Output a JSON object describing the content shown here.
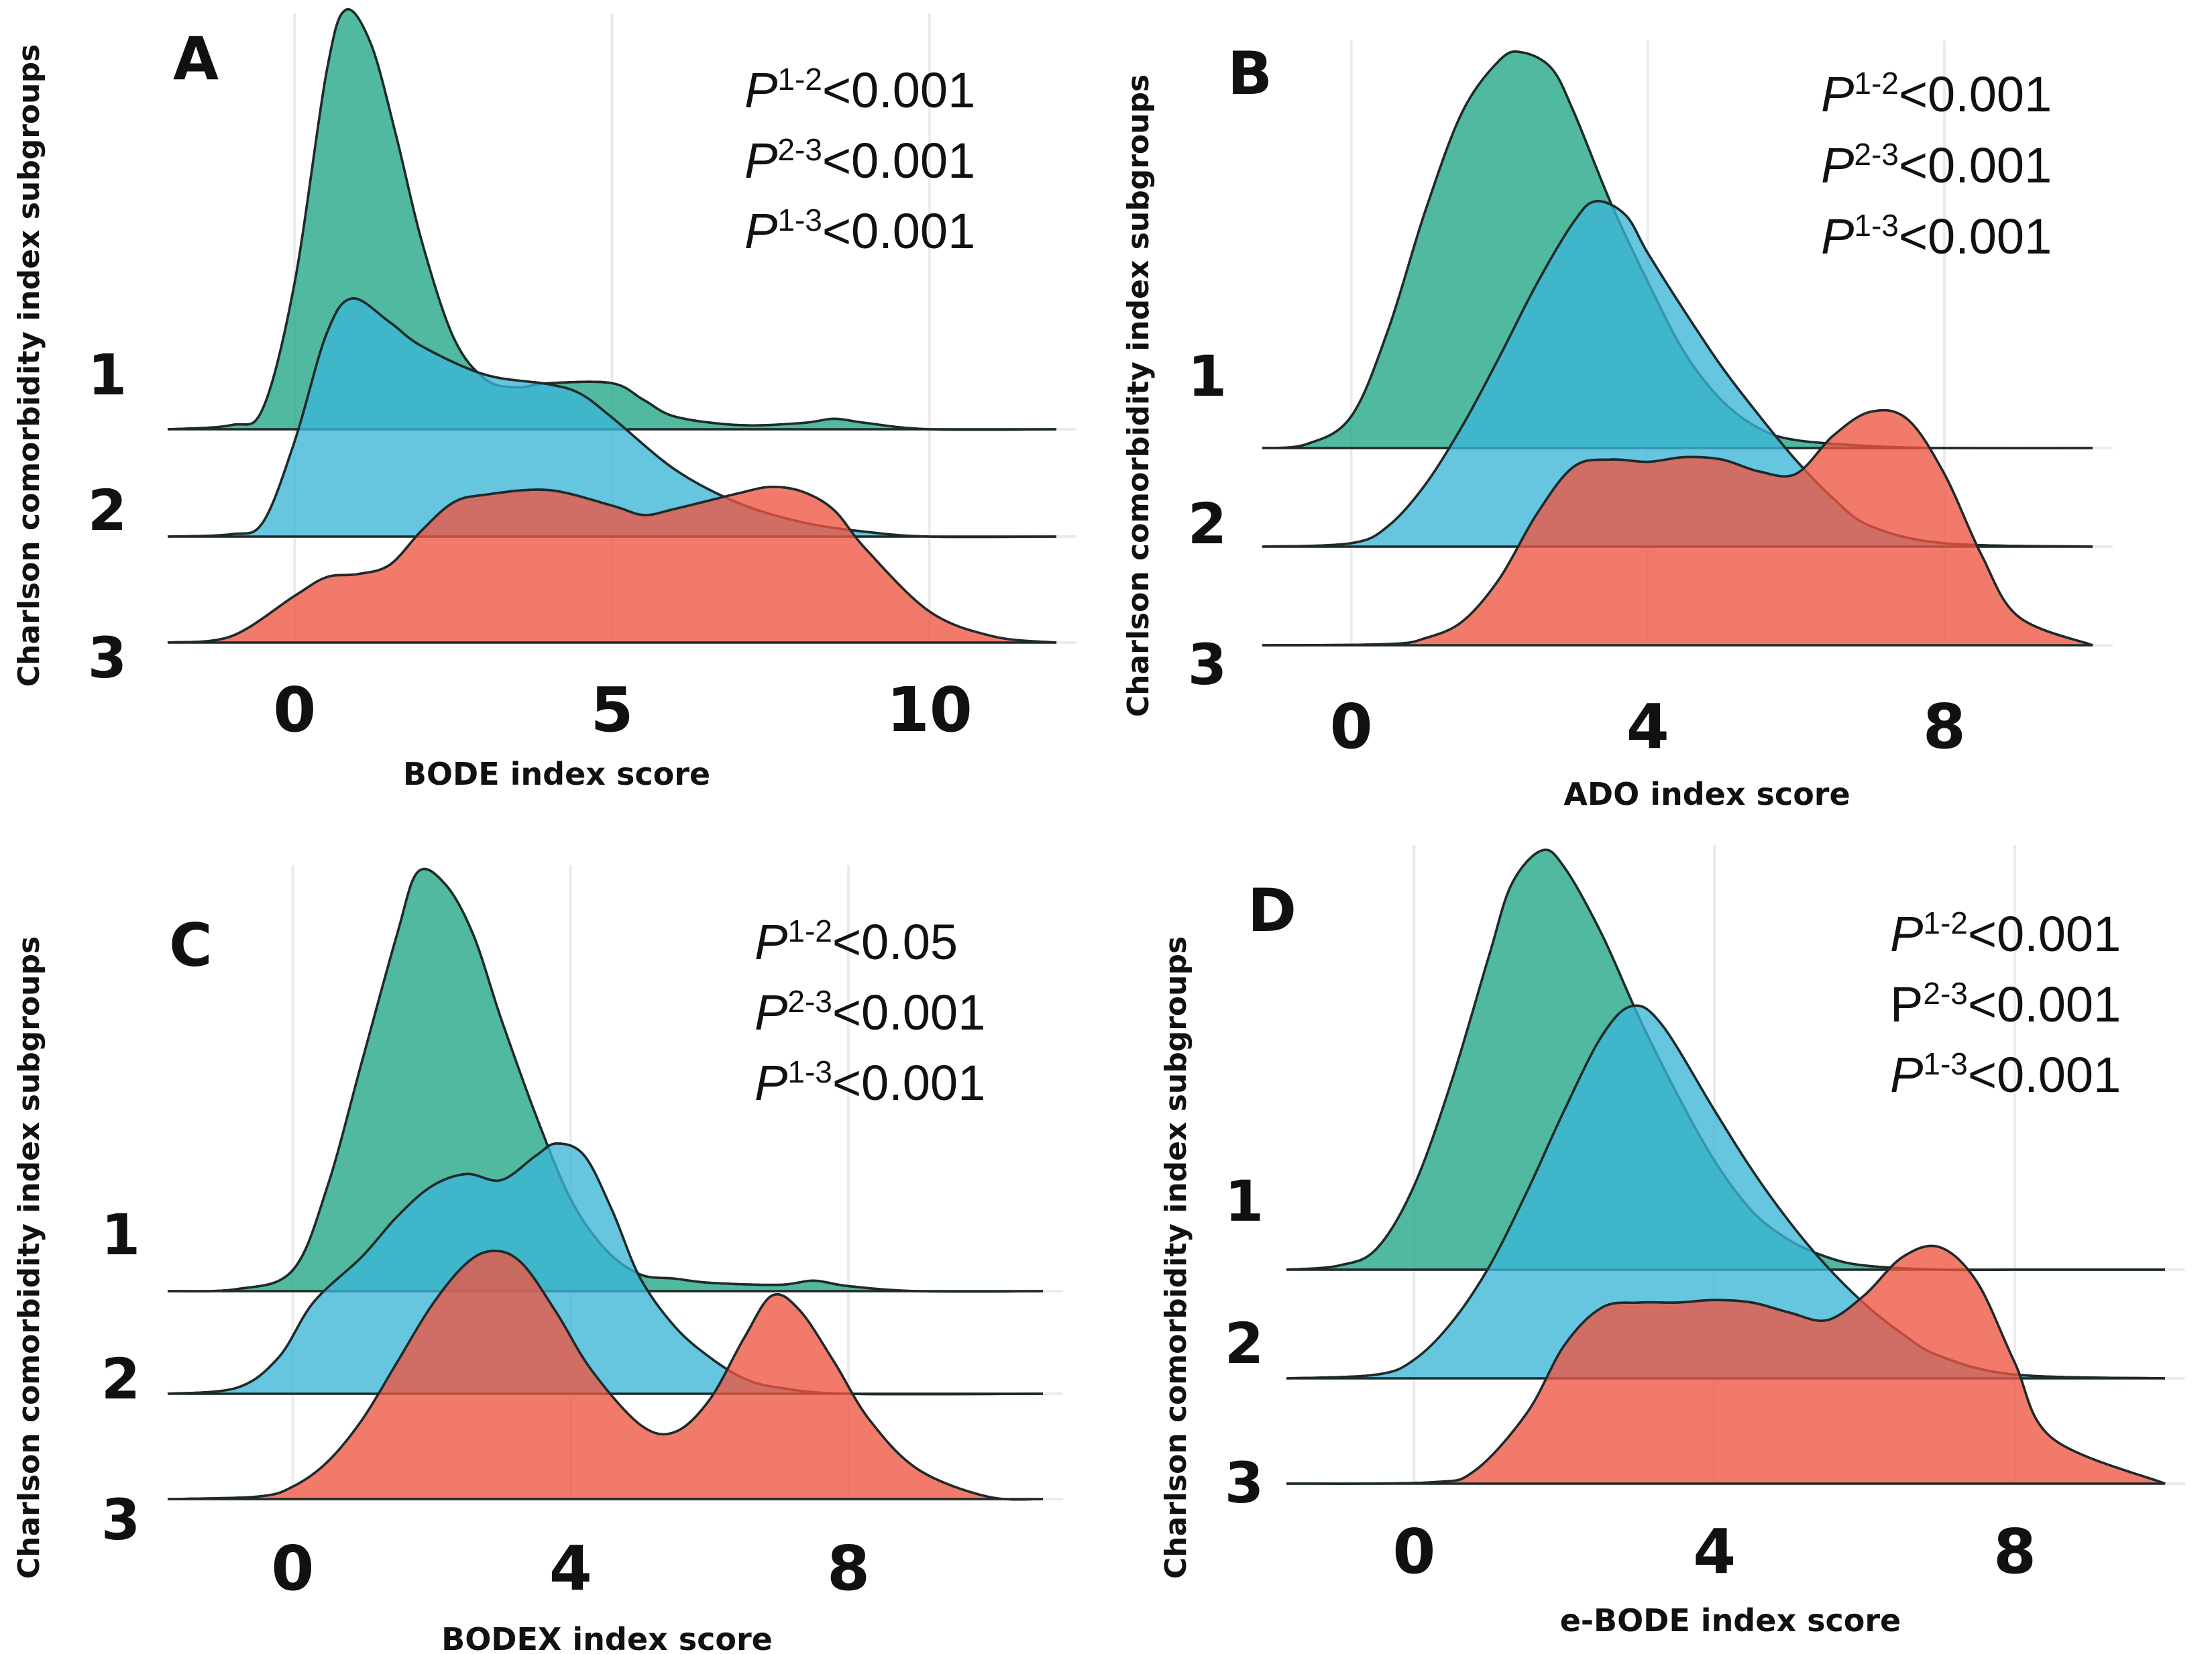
{
  "chart_data": [
    {
      "panel": "A",
      "type": "ridgeline",
      "xlabel": "BODE index score",
      "ylabel": "Charlson comorbidity index subgroups",
      "xlim": [
        -2,
        12
      ],
      "xticks": [
        "0",
        "5",
        "10"
      ],
      "tick_values": [
        0,
        5,
        10
      ],
      "categories": [
        "1",
        "2",
        "3"
      ],
      "pvalues": [
        {
          "pre": "P",
          "italic": true,
          "sup": "1-2",
          "rest": "<0.001"
        },
        {
          "pre": "P",
          "italic": true,
          "sup": "2-3",
          "rest": "<0.001"
        },
        {
          "pre": "P",
          "italic": true,
          "sup": "1-3",
          "rest": "<0.001"
        }
      ],
      "series": [
        {
          "name": "1",
          "color": "#1fa584",
          "x": [
            -2,
            -1,
            -0.5,
            0,
            0.5,
            0.8,
            1.2,
            1.6,
            2,
            2.5,
            3,
            3.5,
            4,
            5,
            5.5,
            6,
            7,
            8,
            8.5,
            9,
            10,
            12
          ],
          "density": [
            0,
            0.01,
            0.05,
            0.35,
            0.85,
            1.0,
            0.92,
            0.7,
            0.45,
            0.22,
            0.12,
            0.1,
            0.11,
            0.11,
            0.07,
            0.03,
            0.01,
            0.015,
            0.025,
            0.015,
            0,
            0
          ]
        },
        {
          "name": "2",
          "color": "#3bb5d6",
          "x": [
            -2,
            -1,
            -0.5,
            0,
            0.5,
            0.9,
            1.5,
            2,
            3,
            4,
            4.5,
            5,
            6,
            7,
            8,
            9,
            10,
            12
          ],
          "density": [
            0,
            0.01,
            0.06,
            0.4,
            0.85,
            1.0,
            0.9,
            0.8,
            0.68,
            0.64,
            0.6,
            0.5,
            0.28,
            0.14,
            0.06,
            0.02,
            0,
            0
          ]
        },
        {
          "name": "3",
          "color": "#ee5541",
          "x": [
            -2,
            -1,
            0,
            0.5,
            1,
            1.5,
            2,
            2.5,
            3,
            4,
            5,
            5.5,
            6,
            7,
            7.5,
            8,
            8.5,
            9,
            10,
            11,
            12
          ],
          "density": [
            0,
            0.04,
            0.3,
            0.42,
            0.44,
            0.5,
            0.72,
            0.9,
            0.95,
            0.98,
            0.88,
            0.82,
            0.86,
            0.96,
            1.0,
            0.97,
            0.85,
            0.6,
            0.2,
            0.04,
            0
          ]
        }
      ]
    },
    {
      "panel": "B",
      "type": "ridgeline",
      "xlabel": "ADO index score",
      "ylabel": "Charlson comorbidity index subgroups",
      "xlim": [
        -1.2,
        10
      ],
      "xticks": [
        "0",
        "4",
        "8"
      ],
      "tick_values": [
        0,
        4,
        8
      ],
      "categories": [
        "1",
        "2",
        "3"
      ],
      "pvalues": [
        {
          "pre": "P",
          "italic": true,
          "sup": "1-2",
          "rest": "<0.001"
        },
        {
          "pre": "P",
          "italic": true,
          "sup": "2-3",
          "rest": "<0.001"
        },
        {
          "pre": "P",
          "italic": true,
          "sup": "1-3",
          "rest": "<0.001"
        }
      ],
      "series": [
        {
          "name": "1",
          "color": "#1fa584",
          "x": [
            -1.2,
            -0.6,
            0,
            0.5,
            1,
            1.5,
            2,
            2.3,
            2.7,
            3,
            3.5,
            4,
            4.5,
            5,
            5.5,
            6,
            7,
            8,
            10
          ],
          "density": [
            0,
            0.01,
            0.08,
            0.3,
            0.6,
            0.85,
            0.98,
            1.0,
            0.96,
            0.85,
            0.62,
            0.42,
            0.24,
            0.12,
            0.05,
            0.02,
            0.005,
            0,
            0
          ]
        },
        {
          "name": "2",
          "color": "#3bb5d6",
          "x": [
            -1.2,
            0,
            0.5,
            1,
            1.5,
            2,
            2.5,
            3,
            3.3,
            3.7,
            4,
            4.5,
            5,
            5.5,
            6,
            6.5,
            7,
            8,
            10
          ],
          "density": [
            0,
            0.01,
            0.06,
            0.18,
            0.35,
            0.55,
            0.76,
            0.94,
            1.0,
            0.96,
            0.85,
            0.68,
            0.52,
            0.38,
            0.25,
            0.14,
            0.06,
            0.01,
            0
          ]
        },
        {
          "name": "3",
          "color": "#ee5541",
          "x": [
            -1.2,
            0.5,
            1,
            1.5,
            2,
            2.5,
            3,
            3.5,
            4,
            4.5,
            5,
            5.5,
            6,
            6.5,
            7,
            7.5,
            8,
            8.5,
            9,
            10
          ],
          "density": [
            0,
            0.005,
            0.03,
            0.1,
            0.28,
            0.55,
            0.75,
            0.78,
            0.77,
            0.79,
            0.78,
            0.73,
            0.72,
            0.88,
            0.98,
            0.95,
            0.72,
            0.38,
            0.12,
            0
          ]
        }
      ]
    },
    {
      "panel": "C",
      "type": "ridgeline",
      "xlabel": "BODEX index score",
      "ylabel": "Charlson comorbidity index subgroups",
      "xlim": [
        -1.8,
        10.8
      ],
      "xticks": [
        "0",
        "4",
        "8"
      ],
      "tick_values": [
        0,
        4,
        8
      ],
      "categories": [
        "1",
        "2",
        "3"
      ],
      "pvalues": [
        {
          "pre": "P",
          "italic": true,
          "sup": "1-2",
          "rest": "<0.05"
        },
        {
          "pre": "P",
          "italic": true,
          "sup": "2-3",
          "rest": "<0.001"
        },
        {
          "pre": "P",
          "italic": true,
          "sup": "1-3",
          "rest": "<0.001"
        }
      ],
      "series": [
        {
          "name": "1",
          "color": "#1fa584",
          "x": [
            -1.8,
            -0.8,
            0,
            0.5,
            1,
            1.5,
            1.8,
            2.2,
            2.6,
            3,
            3.5,
            4,
            4.5,
            5,
            5.5,
            6,
            7,
            7.5,
            8,
            9,
            10.8
          ],
          "density": [
            0,
            0.005,
            0.05,
            0.25,
            0.55,
            0.85,
            1.0,
            0.97,
            0.85,
            0.65,
            0.42,
            0.22,
            0.1,
            0.04,
            0.03,
            0.02,
            0.015,
            0.025,
            0.012,
            0,
            0
          ]
        },
        {
          "name": "2",
          "color": "#3bb5d6",
          "x": [
            -1.8,
            -0.8,
            -0.2,
            0.3,
            1,
            1.5,
            2,
            2.5,
            3,
            3.5,
            3.8,
            4.2,
            4.6,
            5,
            5.5,
            6,
            6.5,
            7,
            8,
            10.8
          ],
          "density": [
            0,
            0.02,
            0.12,
            0.3,
            0.45,
            0.58,
            0.68,
            0.72,
            0.7,
            0.78,
            0.82,
            0.78,
            0.6,
            0.38,
            0.22,
            0.12,
            0.05,
            0.02,
            0,
            0
          ]
        },
        {
          "name": "3",
          "color": "#ee5541",
          "x": [
            -1.8,
            -0.5,
            0,
            0.5,
            1,
            1.5,
            2,
            2.5,
            2.9,
            3.3,
            3.8,
            4.3,
            5,
            5.5,
            6,
            6.5,
            6.9,
            7.3,
            7.8,
            8.3,
            9,
            10,
            10.8
          ],
          "density": [
            0,
            0.01,
            0.05,
            0.15,
            0.32,
            0.55,
            0.78,
            0.95,
            1.0,
            0.95,
            0.75,
            0.52,
            0.3,
            0.27,
            0.4,
            0.65,
            0.82,
            0.76,
            0.55,
            0.32,
            0.12,
            0.01,
            0
          ]
        }
      ]
    },
    {
      "panel": "D",
      "type": "ridgeline",
      "xlabel": "e-BODE index score",
      "ylabel": "Charlson comorbidity index subgroups",
      "xlim": [
        -1.7,
        10
      ],
      "xticks": [
        "0",
        "4",
        "8"
      ],
      "tick_values": [
        0,
        4,
        8
      ],
      "categories": [
        "1",
        "2",
        "3"
      ],
      "pvalues": [
        {
          "pre": "P",
          "italic": true,
          "sup": "1-2",
          "rest": "<0.001"
        },
        {
          "pre": "P",
          "italic": false,
          "sup": "2-3",
          "rest": "<0.001"
        },
        {
          "pre": "P",
          "italic": true,
          "sup": "1-3",
          "rest": "<0.001"
        }
      ],
      "series": [
        {
          "name": "1",
          "color": "#1fa584",
          "x": [
            -1.7,
            -1,
            -0.5,
            0,
            0.5,
            1,
            1.3,
            1.7,
            2,
            2.5,
            3,
            3.5,
            4,
            4.5,
            5,
            5.5,
            6,
            7,
            8,
            10
          ],
          "density": [
            0,
            0.01,
            0.05,
            0.2,
            0.45,
            0.75,
            0.92,
            1.0,
            0.96,
            0.8,
            0.6,
            0.42,
            0.26,
            0.14,
            0.07,
            0.03,
            0.01,
            0,
            0,
            0
          ]
        },
        {
          "name": "2",
          "color": "#3bb5d6",
          "x": [
            -1.7,
            -0.5,
            0,
            0.5,
            1,
            1.5,
            2,
            2.5,
            2.9,
            3.3,
            4,
            4.5,
            5,
            5.5,
            6,
            6.5,
            7,
            8,
            10
          ],
          "density": [
            0,
            0.01,
            0.05,
            0.15,
            0.3,
            0.5,
            0.72,
            0.92,
            1.0,
            0.95,
            0.72,
            0.56,
            0.42,
            0.3,
            0.2,
            0.12,
            0.06,
            0.01,
            0
          ]
        },
        {
          "name": "3",
          "color": "#ee5541",
          "x": [
            -1.7,
            0.2,
            0.8,
            1.5,
            2,
            2.5,
            3,
            3.5,
            4,
            4.5,
            5,
            5.5,
            6,
            6.5,
            7,
            7.5,
            8,
            8.5,
            10
          ],
          "density": [
            0,
            0.005,
            0.05,
            0.28,
            0.55,
            0.7,
            0.72,
            0.72,
            0.73,
            0.72,
            0.68,
            0.65,
            0.75,
            0.9,
            0.94,
            0.8,
            0.48,
            0.18,
            0
          ]
        }
      ]
    }
  ]
}
